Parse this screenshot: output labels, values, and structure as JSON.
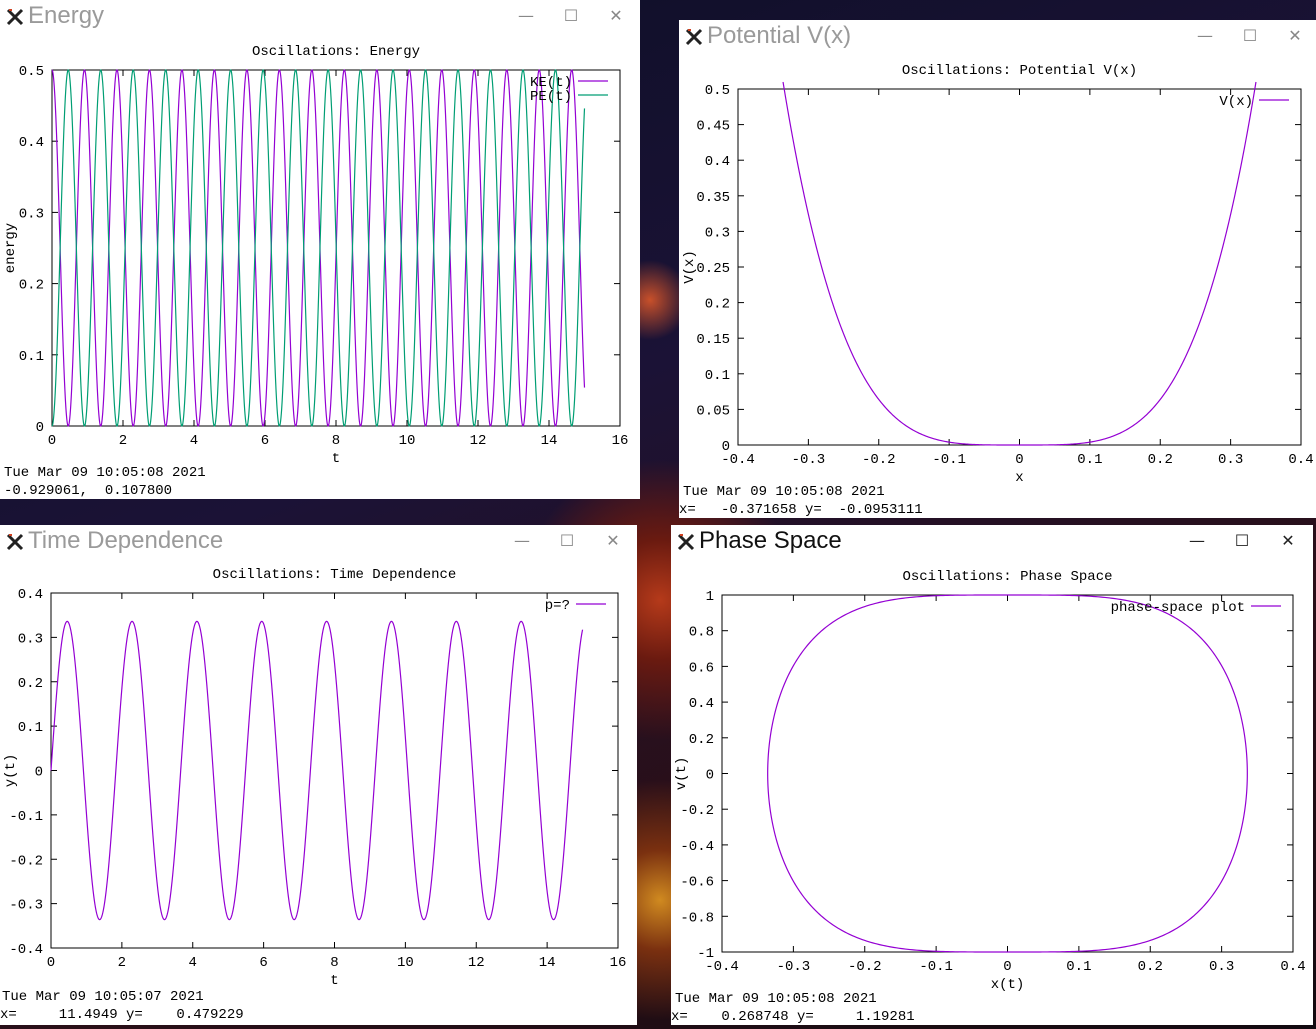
{
  "windows": {
    "energy": {
      "title": "Energy",
      "plot_title": "Oscillations: Energy",
      "xlabel": "t",
      "ylabel": "energy",
      "date": "Tue Mar 09 10:05:08 2021",
      "coords": "-0.929061,  0.107800"
    },
    "potential": {
      "title": "Potential V(x)",
      "plot_title": "Oscillations: Potential V(x)",
      "xlabel": "x",
      "ylabel": "V(x)",
      "date": "Tue Mar 09 10:05:08 2021",
      "coords": "x=   -0.371658 y=  -0.0953111"
    },
    "time": {
      "title": "Time Dependence",
      "plot_title": "Oscillations: Time Dependence",
      "xlabel": "t",
      "ylabel": "y(t)",
      "date": "Tue Mar 09 10:05:07 2021",
      "coords": "x=     11.4949 y=    0.479229"
    },
    "phase": {
      "title": "Phase Space",
      "plot_title": "Oscillations: Phase Space",
      "xlabel": "x(t)",
      "ylabel": "v(t)",
      "date": "Tue Mar 09 10:05:08 2021",
      "coords": "x=    0.268748 y=     1.19281"
    }
  },
  "window_controls": {
    "minimize": "—",
    "maximize": "☐",
    "close": "✕"
  },
  "colors": {
    "purple": "#9400d3",
    "teal": "#009e73",
    "axis": "#000000"
  },
  "chart_data": [
    {
      "id": "energy",
      "type": "line",
      "title": "Oscillations: Energy",
      "xlabel": "t",
      "ylabel": "energy",
      "xlim": [
        0,
        16
      ],
      "ylim": [
        0,
        0.5
      ],
      "xticks": [
        "0",
        "2",
        "4",
        "6",
        "8",
        "10",
        "12",
        "14",
        "16"
      ],
      "yticks": [
        "0",
        "0.1",
        "0.2",
        "0.3",
        "0.4",
        "0.5"
      ],
      "legend_position": "top-right",
      "series": [
        {
          "name": "KE(t)",
          "color": "#9400d3",
          "model": "ke",
          "amplitude": 0.5,
          "period": 1.83,
          "t_end": 15
        },
        {
          "name": "PE(t)",
          "color": "#009e73",
          "model": "pe",
          "amplitude": 0.5,
          "period": 1.83,
          "t_end": 15
        }
      ]
    },
    {
      "id": "potential",
      "type": "line",
      "title": "Oscillations: Potential V(x)",
      "xlabel": "x",
      "ylabel": "V(x)",
      "xlim": [
        -0.4,
        0.4
      ],
      "ylim": [
        0,
        0.5
      ],
      "xticks": [
        "-0.4",
        "-0.3",
        "-0.2",
        "-0.1",
        "0",
        "0.1",
        "0.2",
        "0.3",
        "0.4"
      ],
      "yticks": [
        "0",
        "0.05",
        "0.1",
        "0.15",
        "0.2",
        "0.25",
        "0.3",
        "0.35",
        "0.4",
        "0.45",
        "0.5"
      ],
      "legend_position": "top-right",
      "series": [
        {
          "name": "V(x)",
          "color": "#9400d3",
          "model": "quartic",
          "coefficient": 40,
          "x_range": [
            -0.336,
            0.336
          ]
        }
      ]
    },
    {
      "id": "time",
      "type": "line",
      "title": "Oscillations: Time Dependence",
      "xlabel": "t",
      "ylabel": "y(t)",
      "xlim": [
        0,
        16
      ],
      "ylim": [
        -0.4,
        0.4
      ],
      "xticks": [
        "0",
        "2",
        "4",
        "6",
        "8",
        "10",
        "12",
        "14",
        "16"
      ],
      "yticks": [
        "-0.4",
        "-0.3",
        "-0.2",
        "-0.1",
        "0",
        "0.1",
        "0.2",
        "0.3",
        "0.4"
      ],
      "legend_position": "top-right",
      "series": [
        {
          "name": "p=?",
          "color": "#9400d3",
          "model": "osc",
          "amplitude": 0.336,
          "period": 1.83,
          "t_end": 15
        }
      ]
    },
    {
      "id": "phase",
      "type": "line",
      "title": "Oscillations: Phase Space",
      "xlabel": "x(t)",
      "ylabel": "v(t)",
      "xlim": [
        -0.4,
        0.4
      ],
      "ylim": [
        -1,
        1
      ],
      "xticks": [
        "-0.4",
        "-0.3",
        "-0.2",
        "-0.1",
        "0",
        "0.1",
        "0.2",
        "0.3",
        "0.4"
      ],
      "yticks": [
        "-1",
        "-0.8",
        "-0.6",
        "-0.4",
        "-0.2",
        "0",
        "0.2",
        "0.4",
        "0.6",
        "0.8",
        "1"
      ],
      "legend_position": "top-right",
      "series": [
        {
          "name": "phase-space plot",
          "color": "#9400d3",
          "model": "phase",
          "x_amplitude": 0.336,
          "v_amplitude": 1.0
        }
      ]
    }
  ]
}
